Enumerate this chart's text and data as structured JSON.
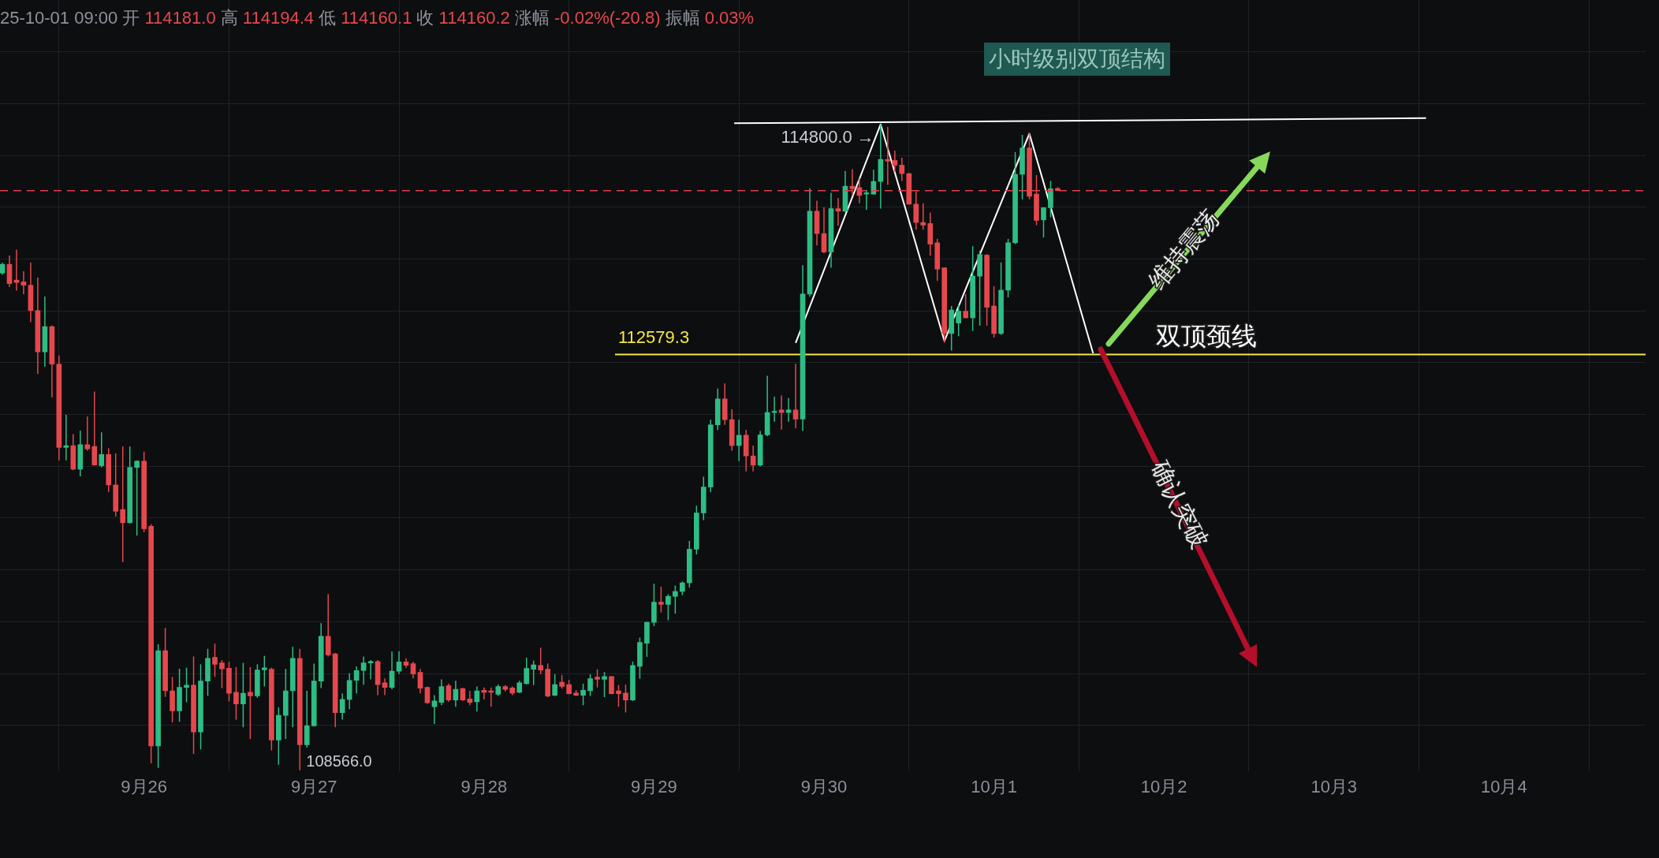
{
  "chart_data": {
    "type": "candlestick",
    "title": "小时级别双顶结构",
    "subtitle": "25-10-01 09:00 开 114181.0 高 114194.4 低 114160.1 收 114160.2 涨幅 -0.02%(-20.8) 振幅 0.03%",
    "x": [
      "--09-25T04:00",
      "--09-25T05:00",
      "--09-25T06:00",
      "--09-25T07:00",
      "--09-25T08:00",
      "--09-25T09:00",
      "--09-25T10:00",
      "--09-25T11:00",
      "--09-25T12:00",
      "--09-25T13:00",
      "--09-25T14:00",
      "--09-25T15:00",
      "--09-25T16:00",
      "--09-25T17:00",
      "--09-25T18:00",
      "--09-25T19:00",
      "--09-25T20:00",
      "--09-25T21:00",
      "--09-25T22:00",
      "--09-25T23:00",
      "--09-26T00:00",
      "--09-26T01:00",
      "--09-26T02:00",
      "--09-26T03:00",
      "--09-26T04:00",
      "--09-26T05:00",
      "--09-26T06:00",
      "--09-26T07:00",
      "--09-26T08:00",
      "--09-26T09:00",
      "--09-26T10:00",
      "--09-26T11:00",
      "--09-26T12:00",
      "--09-26T13:00",
      "--09-26T14:00",
      "--09-26T15:00",
      "--09-26T16:00",
      "--09-26T17:00",
      "--09-26T18:00",
      "--09-26T19:00",
      "--09-26T20:00",
      "--09-26T21:00",
      "--09-26T22:00",
      "--09-26T23:00",
      "--09-27T00:00",
      "--09-27T01:00",
      "--09-27T02:00",
      "--09-27T03:00",
      "--09-27T04:00",
      "--09-27T05:00",
      "--09-27T06:00",
      "--09-27T07:00",
      "--09-27T08:00",
      "--09-27T09:00",
      "--09-27T10:00",
      "--09-27T11:00",
      "--09-27T12:00",
      "--09-27T13:00",
      "--09-27T14:00",
      "--09-27T15:00",
      "--09-27T16:00",
      "--09-27T17:00",
      "--09-27T18:00",
      "--09-27T19:00",
      "--09-27T20:00",
      "--09-27T21:00",
      "--09-27T22:00",
      "--09-27T23:00",
      "--09-28T00:00",
      "--09-28T01:00",
      "--09-28T02:00",
      "--09-28T03:00",
      "--09-28T04:00",
      "--09-28T05:00",
      "--09-28T06:00",
      "--09-28T07:00",
      "--09-28T08:00",
      "--09-28T09:00",
      "--09-28T10:00",
      "--09-28T11:00",
      "--09-28T12:00",
      "--09-28T13:00",
      "--09-28T14:00",
      "--09-28T15:00",
      "--09-28T16:00",
      "--09-28T17:00",
      "--09-28T18:00",
      "--09-28T19:00",
      "--09-28T20:00",
      "--09-28T21:00",
      "--09-28T22:00",
      "--09-28T23:00",
      "--09-29T00:00",
      "--09-29T01:00",
      "--09-29T02:00",
      "--09-29T03:00",
      "--09-29T04:00",
      "--09-29T05:00",
      "--09-29T06:00",
      "--09-29T07:00",
      "--09-29T08:00",
      "--09-29T09:00",
      "--09-29T10:00",
      "--09-29T11:00",
      "--09-29T12:00",
      "--09-29T13:00",
      "--09-29T14:00",
      "--09-29T15:00",
      "--09-29T16:00",
      "--09-29T17:00",
      "--09-29T18:00",
      "--09-29T19:00",
      "--09-29T20:00",
      "--09-29T21:00",
      "--09-29T22:00",
      "--09-29T23:00",
      "--09-30T00:00",
      "--09-30T01:00",
      "--09-30T02:00",
      "--09-30T03:00",
      "--09-30T04:00",
      "--09-30T05:00",
      "--09-30T06:00",
      "--09-30T07:00",
      "--09-30T08:00",
      "--09-30T09:00",
      "--09-30T10:00",
      "--09-30T11:00",
      "--09-30T12:00",
      "--09-30T13:00",
      "--09-30T14:00",
      "--09-30T15:00",
      "--09-30T16:00",
      "--09-30T17:00",
      "--09-30T18:00",
      "--09-30T19:00",
      "--09-30T20:00",
      "--09-30T21:00",
      "--09-30T22:00",
      "--09-30T23:00",
      "--10-01T00:00",
      "--10-01T01:00",
      "--10-01T02:00",
      "--10-01T03:00",
      "--10-01T04:00",
      "--10-01T05:00",
      "--10-01T06:00",
      "--10-01T07:00",
      "--10-01T08:00",
      "--10-01T09:00"
    ],
    "ohlc": [
      [
        113365,
        113466,
        113348,
        113449
      ],
      [
        113449,
        113534,
        113230,
        113263
      ],
      [
        113297,
        113591,
        113196,
        113274
      ],
      [
        113280,
        113382,
        113162,
        113247
      ],
      [
        113247,
        113466,
        112892,
        113003
      ],
      [
        113003,
        113321,
        112391,
        112604
      ],
      [
        112604,
        113138,
        112462,
        112848
      ],
      [
        112848,
        112858,
        112165,
        112486
      ],
      [
        112486,
        112570,
        111557,
        111682
      ],
      [
        111682,
        111996,
        111557,
        111699
      ],
      [
        111699,
        111810,
        111462,
        111472
      ],
      [
        111472,
        111844,
        111404,
        111709
      ],
      [
        111709,
        111979,
        111651,
        111668
      ],
      [
        111692,
        112222,
        111506,
        111513
      ],
      [
        111506,
        111827,
        111489,
        111614
      ],
      [
        111614,
        111675,
        111252,
        111320
      ],
      [
        111320,
        111624,
        111016,
        111066
      ],
      [
        111083,
        111692,
        110576,
        110955
      ],
      [
        110955,
        111692,
        110948,
        111489
      ],
      [
        111489,
        111557,
        110830,
        111550
      ],
      [
        111550,
        111641,
        110864,
        110897
      ],
      [
        110921,
        110941,
        108633,
        108802
      ],
      [
        108802,
        109782,
        108590,
        109721
      ],
      [
        109721,
        109941,
        109275,
        109333
      ],
      [
        109333,
        109468,
        109028,
        109140
      ],
      [
        109140,
        109547,
        109034,
        109366
      ],
      [
        109366,
        109556,
        109224,
        109387
      ],
      [
        109387,
        109664,
        108724,
        108937
      ],
      [
        108937,
        109589,
        108768,
        109427
      ],
      [
        109427,
        109738,
        109285,
        109647
      ],
      [
        109657,
        109789,
        109468,
        109589
      ],
      [
        109603,
        109630,
        109359,
        109545
      ],
      [
        109552,
        109613,
        109231,
        109309
      ],
      [
        109319,
        109562,
        109055,
        109207
      ],
      [
        109207,
        109603,
        108981,
        109309
      ],
      [
        109319,
        109562,
        108869,
        109285
      ],
      [
        109285,
        109589,
        109265,
        109535
      ],
      [
        109535,
        109671,
        109376,
        109556
      ],
      [
        109542,
        109556,
        108758,
        108859
      ],
      [
        108859,
        109174,
        108620,
        109096
      ],
      [
        109096,
        109545,
        108869,
        109333
      ],
      [
        109333,
        109758,
        108981,
        109647
      ],
      [
        109647,
        109738,
        108566,
        108812
      ],
      [
        108812,
        109333,
        108785,
        108995
      ],
      [
        108995,
        109596,
        108988,
        109427
      ],
      [
        109427,
        109985,
        109359,
        109860
      ],
      [
        109860,
        110265,
        109664,
        109681
      ],
      [
        109691,
        109698,
        108981,
        109123
      ],
      [
        109123,
        109309,
        109055,
        109251
      ],
      [
        109251,
        109502,
        109157,
        109434
      ],
      [
        109434,
        109569,
        109309,
        109529
      ],
      [
        109529,
        109664,
        109393,
        109603
      ],
      [
        109603,
        109630,
        109444,
        109616
      ],
      [
        109616,
        109630,
        109292,
        109393
      ],
      [
        109410,
        109454,
        109292,
        109366
      ],
      [
        109366,
        109714,
        109349,
        109522
      ],
      [
        109522,
        109714,
        109495,
        109613
      ],
      [
        109613,
        109647,
        109556,
        109579
      ],
      [
        109596,
        109613,
        109454,
        109495
      ],
      [
        109512,
        109545,
        109309,
        109359
      ],
      [
        109366,
        109376,
        109207,
        109218
      ],
      [
        109180,
        109291,
        109013,
        109235
      ],
      [
        109222,
        109444,
        109194,
        109375
      ],
      [
        109383,
        109403,
        109227,
        109244
      ],
      [
        109244,
        109430,
        109180,
        109347
      ],
      [
        109355,
        109361,
        109236,
        109244
      ],
      [
        109255,
        109333,
        109194,
        109222
      ],
      [
        109227,
        109375,
        109133,
        109333
      ],
      [
        109339,
        109366,
        109250,
        109319
      ],
      [
        109333,
        109366,
        109180,
        109319
      ],
      [
        109299,
        109394,
        109283,
        109375
      ],
      [
        109375,
        109389,
        109327,
        109347
      ],
      [
        109361,
        109375,
        109291,
        109311
      ],
      [
        109319,
        109430,
        109311,
        109411
      ],
      [
        109403,
        109653,
        109394,
        109550
      ],
      [
        109541,
        109625,
        109389,
        109583
      ],
      [
        109578,
        109750,
        109494,
        109533
      ],
      [
        109541,
        109597,
        109272,
        109283
      ],
      [
        109291,
        109494,
        109283,
        109394
      ],
      [
        109416,
        109486,
        109355,
        109375
      ],
      [
        109394,
        109438,
        109300,
        109305
      ],
      [
        109311,
        109339,
        109283,
        109291
      ],
      [
        109291,
        109403,
        109194,
        109339
      ],
      [
        109333,
        109494,
        109283,
        109450
      ],
      [
        109466,
        109541,
        109366,
        109444
      ],
      [
        109444,
        109514,
        109272,
        109472
      ],
      [
        109472,
        109472,
        109300,
        109305
      ],
      [
        109333,
        109389,
        109180,
        109305
      ],
      [
        109311,
        109394,
        109124,
        109244
      ],
      [
        109244,
        109616,
        109236,
        109578
      ],
      [
        109569,
        109847,
        109450,
        109800
      ],
      [
        109792,
        110000,
        109661,
        109994
      ],
      [
        109994,
        110367,
        109958,
        110189
      ],
      [
        110189,
        110339,
        110089,
        110167
      ],
      [
        110167,
        110264,
        110014,
        110245
      ],
      [
        110245,
        110348,
        110078,
        110292
      ],
      [
        110292,
        110389,
        110256,
        110375
      ],
      [
        110375,
        110780,
        110330,
        110700
      ],
      [
        110700,
        111120,
        110650,
        111050
      ],
      [
        111050,
        111400,
        110980,
        111300
      ],
      [
        111300,
        111950,
        111250,
        111900
      ],
      [
        111900,
        112250,
        111850,
        112150
      ],
      [
        112150,
        112300,
        111900,
        111950
      ],
      [
        111950,
        112050,
        111650,
        111700
      ],
      [
        111700,
        111950,
        111550,
        111800
      ],
      [
        111800,
        111850,
        111450,
        111600
      ],
      [
        111600,
        111700,
        111450,
        111511
      ],
      [
        111511,
        111841,
        111498,
        111803
      ],
      [
        111803,
        112374,
        111790,
        112019
      ],
      [
        112019,
        112171,
        111930,
        112031
      ],
      [
        112044,
        112183,
        111854,
        112019
      ],
      [
        112019,
        112158,
        111930,
        112044
      ],
      [
        112044,
        112489,
        111866,
        111955
      ],
      [
        111955,
        113441,
        111841,
        113162
      ],
      [
        113162,
        114183,
        113136,
        113962
      ],
      [
        113962,
        114064,
        113632,
        113746
      ],
      [
        113746,
        114000,
        113556,
        113568
      ],
      [
        113568,
        114140,
        113416,
        113987
      ],
      [
        113987,
        114089,
        113822,
        113962
      ],
      [
        113962,
        114351,
        113949,
        114203
      ],
      [
        114203,
        114368,
        114114,
        114178
      ],
      [
        114190,
        114279,
        114038,
        114114
      ],
      [
        114127,
        114165,
        113975,
        114140
      ],
      [
        114127,
        114361,
        114122,
        114249
      ],
      [
        114249,
        114800,
        113987,
        114462
      ],
      [
        114462,
        114775,
        114216,
        114445
      ],
      [
        114452,
        114546,
        114343,
        114406
      ],
      [
        114406,
        114478,
        114254,
        114325
      ],
      [
        114325,
        114330,
        114025,
        114030
      ],
      [
        114030,
        114152,
        113784,
        113853
      ],
      [
        113853,
        114038,
        113784,
        113827
      ],
      [
        113843,
        113949,
        113533,
        113644
      ],
      [
        113657,
        113695,
        113289,
        113403
      ],
      [
        113416,
        113416,
        112692,
        112781
      ],
      [
        112781,
        113047,
        112616,
        113009
      ],
      [
        112882,
        113060,
        112755,
        112997
      ],
      [
        112997,
        113162,
        112928,
        112933
      ],
      [
        112933,
        113624,
        112806,
        113335
      ],
      [
        113335,
        113581,
        112857,
        113543
      ],
      [
        113538,
        113548,
        112857,
        113035
      ],
      [
        113047,
        113238,
        112743,
        112781
      ],
      [
        112781,
        113467,
        112768,
        113200
      ],
      [
        113200,
        113695,
        113131,
        113657
      ],
      [
        113657,
        114533,
        113644,
        114318
      ],
      [
        114318,
        114698,
        114076,
        114572
      ],
      [
        114572,
        114716,
        114076,
        114106
      ],
      [
        114127,
        114310,
        113827,
        113873
      ],
      [
        113878,
        114000,
        113708,
        113995
      ],
      [
        113995,
        114254,
        113903,
        114178
      ],
      [
        114181.0,
        114194.4,
        114160.1,
        114160.2
      ]
    ],
    "series": [
      {
        "type": "line",
        "color": "#ffffff",
        "x": [
          "--09-29T11:20",
          "--10-03T13:00"
        ],
        "values": [
          114810,
          114860
        ]
      },
      {
        "type": "line",
        "color": "#ffffff",
        "x": [
          "--09-29T20:00",
          "--09-30T08:00",
          "--09-30T17:00",
          "--10-01T05:00",
          "--10-01T14:00"
        ],
        "values": [
          112690,
          114800,
          112710,
          114710,
          112590
        ]
      },
      {
        "type": "line",
        "color": "#f5e642",
        "x": [
          "--09-28T18:30",
          "--10-04T20:00"
        ],
        "values": [
          112579.3,
          112579.3
        ]
      }
    ],
    "ref_lines": [
      {
        "axis": "y",
        "value": 114160.2,
        "color": "#e0404f",
        "line_style": "dashed"
      }
    ],
    "annotations": [
      {
        "text": "114800.0 →",
        "x": "--09-30T08:00",
        "y": 114800
      },
      {
        "text": "108566.0",
        "x": "--09-26T22:00",
        "y": 108566
      },
      {
        "text": "112579.3",
        "x": "--09-28T18:30",
        "y": 112579.3
      },
      {
        "text": "双顶颈线",
        "x": "--10-02T06:00",
        "y": 112579.3
      },
      "维持震荡",
      "确认突破"
    ],
    "xlim": [
      "--09-25T03:40",
      "--10-04T20:00"
    ],
    "xticks": [
      {
        "value": "--09-26",
        "label": "9月26"
      },
      {
        "value": "--09-27",
        "label": "9月27"
      },
      {
        "value": "--09-28",
        "label": "9月28"
      },
      {
        "value": "--09-29",
        "label": "9月29"
      },
      {
        "value": "--09-30",
        "label": "9月30"
      },
      {
        "value": "--10-01",
        "label": "10月1"
      },
      {
        "value": "--10-02",
        "label": "10月2"
      },
      {
        "value": "--10-03",
        "label": "10月3"
      },
      {
        "value": "--10-04",
        "label": "10月4"
      }
    ],
    "ylim": [
      108560,
      116000
    ],
    "yticks": [
      {
        "value": 109000,
        "label": null
      },
      {
        "value": 109500,
        "label": null
      },
      {
        "value": 110000,
        "label": null
      },
      {
        "value": 110500,
        "label": null
      },
      {
        "value": 111000,
        "label": null
      },
      {
        "value": 111500,
        "label": null
      },
      {
        "value": 112000,
        "label": null
      },
      {
        "value": 112500,
        "label": null
      },
      {
        "value": 113000,
        "label": null
      },
      {
        "value": 113500,
        "label": null
      },
      {
        "value": 114000,
        "label": null
      },
      {
        "value": 114500,
        "label": null
      },
      {
        "value": 115000,
        "label": null
      },
      {
        "value": 115500,
        "label": null
      }
    ],
    "tick_labels": "x",
    "grid": true
  }
}
